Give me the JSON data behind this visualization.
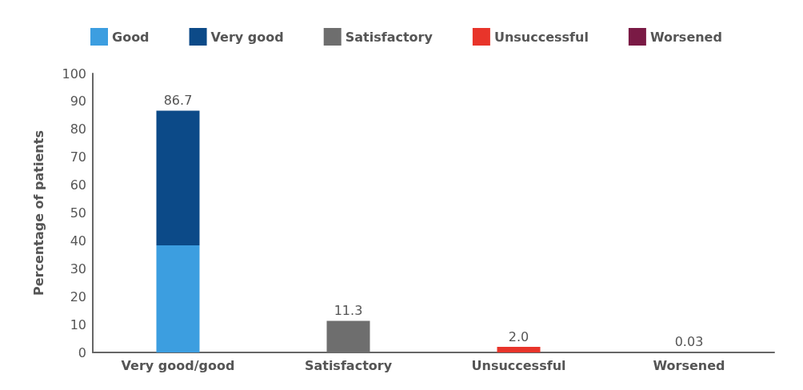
{
  "chart_data": {
    "type": "bar",
    "stacked": true,
    "ylabel": "Percentage of patients",
    "categories": [
      "Very good/good",
      "Satisfactory",
      "Unsuccessful",
      "Worsened"
    ],
    "series": [
      {
        "name": "Good",
        "color": "#3c9ee0",
        "values": [
          38.4,
          null,
          null,
          null
        ]
      },
      {
        "name": "Very good",
        "color": "#0c4a88",
        "values": [
          48.3,
          null,
          null,
          null
        ]
      },
      {
        "name": "Satisfactory",
        "color": "#6e6e6e",
        "values": [
          null,
          11.3,
          null,
          null
        ],
        "value_labels": [
          null,
          "11.3",
          null,
          null
        ]
      },
      {
        "name": "Unsuccessful",
        "color": "#e8342a",
        "values": [
          null,
          null,
          2.0,
          null
        ],
        "value_labels": [
          null,
          null,
          "2.0",
          null
        ]
      },
      {
        "name": "Worsened",
        "color": "#7a1a45",
        "values": [
          null,
          null,
          null,
          0.03
        ],
        "value_labels": [
          null,
          null,
          null,
          "0.03"
        ]
      }
    ],
    "totals": [
      "86.7",
      null,
      null,
      null
    ],
    "ylim": [
      0,
      100
    ],
    "yticks": [
      0,
      10,
      20,
      30,
      40,
      50,
      60,
      70,
      80,
      90,
      100
    ],
    "grid": false,
    "legend": "top"
  }
}
